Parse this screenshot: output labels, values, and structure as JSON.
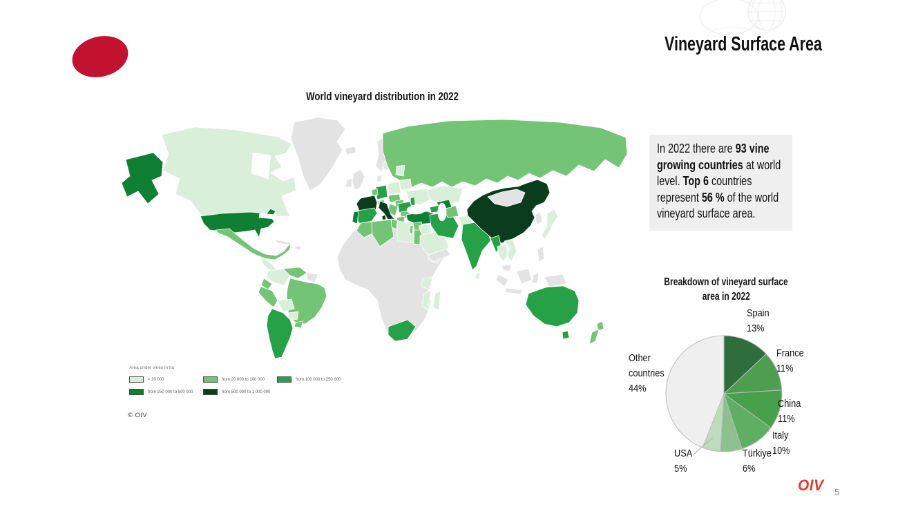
{
  "slide": {
    "title": "Vineyard Surface Area",
    "page_number": "5",
    "footer_logo": "OIV",
    "logo_color": "#C3122F",
    "footer_logo_color": "#E4392E"
  },
  "map": {
    "title": "World vineyard distribution in 2022",
    "legend_title": "Area under vines in ha",
    "copyright": "© OIV",
    "band_colors": {
      "b1": "#daefda",
      "b2": "#74c476",
      "b3": "#27a148",
      "b4": "#0f7f33",
      "b5": "#0a3d1d",
      "nd": "#e3e3e3",
      "water": "#ffffff"
    },
    "legend_items": [
      {
        "label": "< 20 000",
        "band": "b1"
      },
      {
        "label": "from 20 000 to  100 000",
        "band": "b2"
      },
      {
        "label": "from 100 000 to 250 000",
        "band": "b3"
      },
      {
        "label": "from 250 000 to 500 000",
        "band": "b4"
      },
      {
        "label": "from 500 000 to 1 000 000",
        "band": "b5"
      }
    ]
  },
  "info_box": {
    "segments": [
      {
        "text": "In 2022 there are ",
        "bold": false
      },
      {
        "text": "93 vine growing countries",
        "bold": true
      },
      {
        "text": " at world level. ",
        "bold": false
      },
      {
        "text": "Top 6",
        "bold": true
      },
      {
        "text": " countries represent ",
        "bold": false
      },
      {
        "text": "56 %",
        "bold": true
      },
      {
        "text": " of the world vineyard surface area.",
        "bold": false
      }
    ]
  },
  "chart_data": {
    "type": "pie",
    "title_lines": [
      "Breakdown of vineyard surface",
      "area in 2022"
    ],
    "start_angle_deg": 0,
    "direction": "clockwise",
    "legend_position": "outside-labels",
    "slices": [
      {
        "label": "Spain",
        "value_pct": 13,
        "pct_label": "13%",
        "color": "#2e6d3c"
      },
      {
        "label": "France",
        "value_pct": 11,
        "pct_label": "11%",
        "color": "#4f9e4f"
      },
      {
        "label": "China",
        "value_pct": 11,
        "pct_label": "11%",
        "color": "#48a04d"
      },
      {
        "label": "Italy",
        "value_pct": 10,
        "pct_label": "10%",
        "color": "#5fae61"
      },
      {
        "label": "Türkiye",
        "value_pct": 6,
        "pct_label": "6%",
        "color": "#8dc08e"
      },
      {
        "label": "USA",
        "value_pct": 5,
        "pct_label": "5%",
        "color": "#bedcbd"
      },
      {
        "label": "Other countries",
        "value_pct": 44,
        "pct_label": "44%",
        "color": "#f0efef"
      }
    ],
    "stroke_color": "#bdbdbd"
  }
}
